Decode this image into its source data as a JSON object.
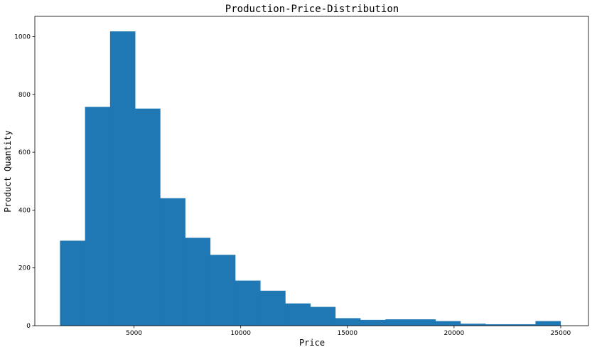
{
  "chart_data": {
    "type": "bar",
    "title": "Production-Price-Distribution",
    "xlabel": "Price",
    "ylabel": "Product Quantity",
    "xlim": [
      350,
      26300
    ],
    "ylim": [
      0,
      1070
    ],
    "xticks": [
      5000,
      10000,
      15000,
      20000,
      25000
    ],
    "yticks": [
      0,
      200,
      400,
      600,
      800,
      1000
    ],
    "bin_start": 1530,
    "bin_width": 1173,
    "values": [
      294,
      757,
      1018,
      751,
      441,
      304,
      245,
      156,
      121,
      77,
      65,
      26,
      20,
      22,
      22,
      16,
      7,
      5,
      5,
      16
    ],
    "bar_color": "#1f77b4",
    "grid": false
  }
}
